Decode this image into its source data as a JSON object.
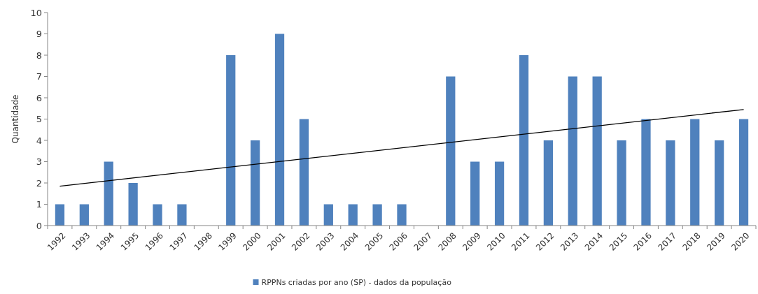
{
  "chart_data": {
    "type": "bar",
    "ylabel": "Quantidade",
    "categories": [
      "1992",
      "1993",
      "1994",
      "1995",
      "1996",
      "1997",
      "1998",
      "1999",
      "2000",
      "2001",
      "2002",
      "2003",
      "2004",
      "2005",
      "2006",
      "2007",
      "2008",
      "2009",
      "2010",
      "2011",
      "2012",
      "2013",
      "2014",
      "2015",
      "2016",
      "2017",
      "2018",
      "2019",
      "2020"
    ],
    "series": [
      {
        "name": "RPPNs criadas por ano (SP) - dados da população",
        "color": "#4f81bd",
        "values": [
          1,
          1,
          3,
          2,
          1,
          1,
          0,
          8,
          4,
          9,
          5,
          1,
          1,
          1,
          1,
          0,
          7,
          3,
          3,
          8,
          4,
          7,
          7,
          4,
          5,
          4,
          5,
          4,
          5
        ]
      },
      {
        "type": "line",
        "color": "#000000",
        "values": [
          1.85,
          null,
          null,
          null,
          null,
          null,
          null,
          null,
          null,
          null,
          null,
          null,
          null,
          null,
          null,
          null,
          null,
          null,
          null,
          null,
          null,
          null,
          null,
          null,
          null,
          null,
          null,
          null,
          5.45
        ]
      }
    ],
    "ylim": [
      0,
      10
    ],
    "yticks": [
      0,
      1,
      2,
      3,
      4,
      5,
      6,
      7,
      8,
      9,
      10
    ],
    "grid": false,
    "legend": "bottom"
  }
}
